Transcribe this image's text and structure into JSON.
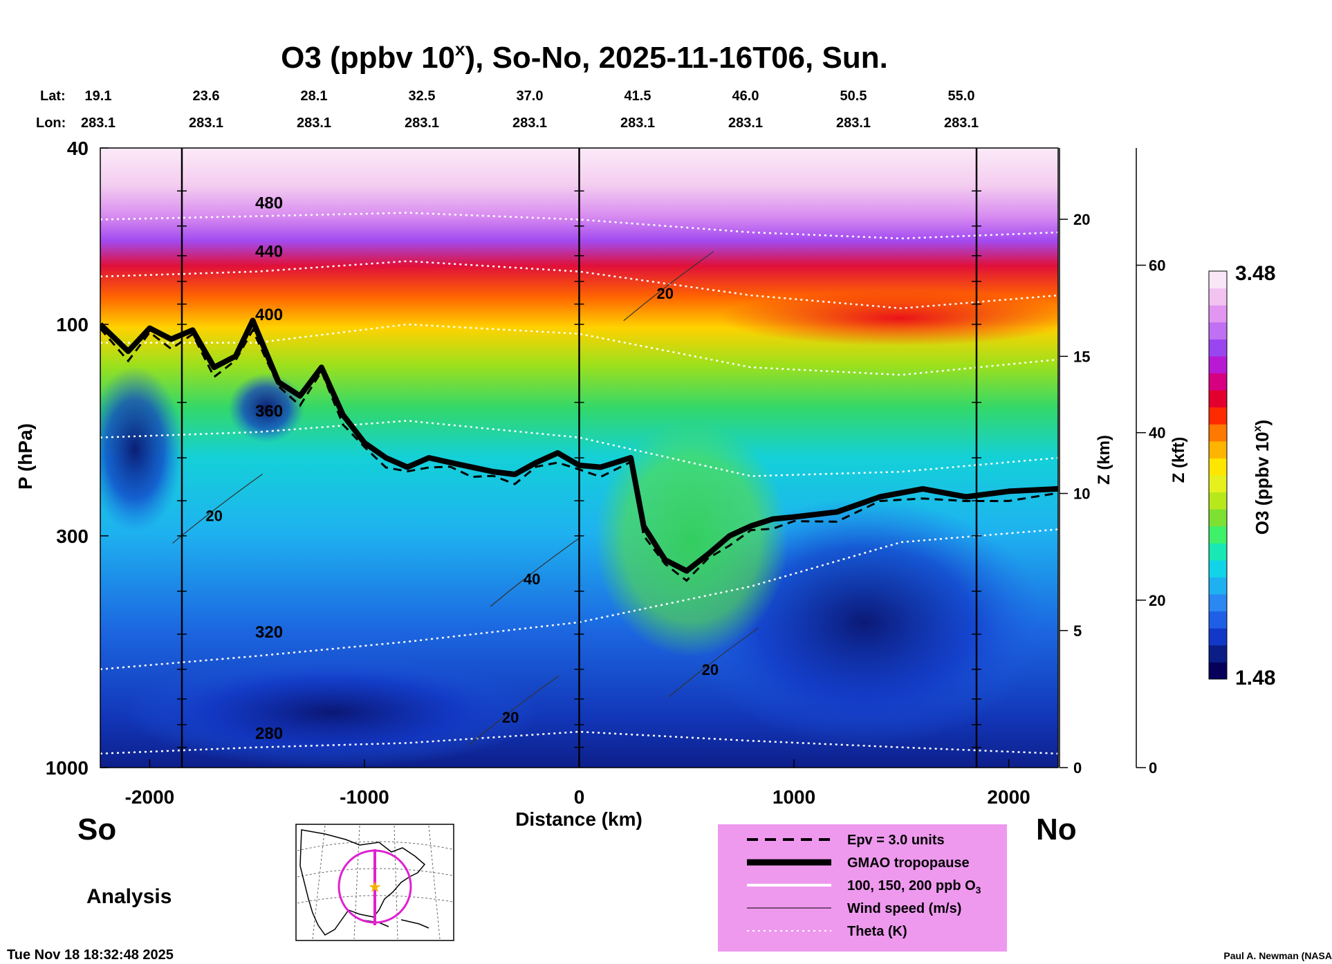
{
  "title": {
    "prefix": "O3 (ppbv 10",
    "superscript": "x",
    "suffix": "), So-No, 2025-11-16T06, Sun."
  },
  "top_axis": {
    "lat_label": "Lat:",
    "lon_label": "Lon:",
    "lat": [
      "19.1",
      "23.6",
      "28.1",
      "32.5",
      "37.0",
      "41.5",
      "46.0",
      "50.5",
      "55.0"
    ],
    "lon": [
      "283.1",
      "283.1",
      "283.1",
      "283.1",
      "283.1",
      "283.1",
      "283.1",
      "283.1",
      "283.1"
    ]
  },
  "direction": {
    "left": "So",
    "right": "No"
  },
  "analysis_label": "Analysis",
  "timestamp": "Tue Nov 18 18:32:48 2025",
  "credit": "Paul A. Newman (NASA",
  "colorbar": {
    "title_prefix": "O3 (ppbv 10",
    "title_superscript": "x",
    "title_suffix": ")",
    "max_label": "3.48",
    "min_label": "1.48",
    "colors": [
      "#07005a",
      "#0b1e86",
      "#1238c8",
      "#1f5fe6",
      "#2b87f2",
      "#1fb0f2",
      "#12d4e8",
      "#18e8b4",
      "#3ef06a",
      "#7ee032",
      "#b6e81c",
      "#e6f01e",
      "#ffe600",
      "#ffb400",
      "#ff7800",
      "#ff2a00",
      "#e4002e",
      "#d60080",
      "#b81ad4",
      "#9a46f0",
      "#c070f2",
      "#e296f2",
      "#f2c2f0",
      "#f9e6f7"
    ]
  },
  "legend": {
    "background": "#ee99ee",
    "items": [
      {
        "style": "dashed",
        "label": "Epv = 3.0 units"
      },
      {
        "style": "thick",
        "label": "GMAO tropopause"
      },
      {
        "style": "white",
        "label": "100, 150, 200 ppb O",
        "sub": "3"
      },
      {
        "style": "thin",
        "label": "Wind speed (m/s)"
      },
      {
        "style": "dotted",
        "label": "Theta (K)"
      }
    ]
  },
  "chart_data": {
    "type": "heatmap",
    "title": "O3 (ppbv 10^x), So-No, 2025-11-16T06, Sun.",
    "xlabel": "Distance (km)",
    "ylabel": "P (hPa)",
    "y2label": "Z (km)",
    "y3label": "Z (kft)",
    "xlim": [
      -2230,
      2230
    ],
    "ylim": [
      1000,
      40
    ],
    "yscale": "log",
    "x_ticks": [
      -2000,
      -1000,
      0,
      1000,
      2000
    ],
    "x_tick_labels": [
      "-2000",
      "-1000",
      "0",
      "1000",
      "2000"
    ],
    "y_ticks": [
      40,
      100,
      300,
      1000
    ],
    "y_tick_labels": [
      "40",
      "100",
      "300",
      "1000"
    ],
    "z_km_ticks": [
      0,
      5,
      10,
      15,
      20
    ],
    "z_km_labels": [
      "0",
      "5",
      "10",
      "15",
      "20"
    ],
    "z_kft_ticks": [
      0,
      20,
      40,
      60
    ],
    "z_kft_labels": [
      "0",
      "20",
      "40",
      "60"
    ],
    "reference_lines_km": [
      -1850,
      0,
      1850
    ],
    "colorbar_range": [
      1.48,
      3.48
    ],
    "theta_contours": [
      {
        "label": "280",
        "values": [
          [
            -2230,
            930
          ],
          [
            -1500,
            900
          ],
          [
            -800,
            880
          ],
          [
            0,
            830
          ],
          [
            800,
            870
          ],
          [
            1500,
            900
          ],
          [
            2230,
            930
          ]
        ]
      },
      {
        "label": "320",
        "values": [
          [
            -2230,
            600
          ],
          [
            -1500,
            560
          ],
          [
            -800,
            520
          ],
          [
            0,
            470
          ],
          [
            800,
            390
          ],
          [
            1500,
            310
          ],
          [
            2230,
            290
          ]
        ]
      },
      {
        "label": "360",
        "values": [
          [
            -2230,
            180
          ],
          [
            -1500,
            175
          ],
          [
            -800,
            165
          ],
          [
            0,
            180
          ],
          [
            800,
            220
          ],
          [
            1500,
            215
          ],
          [
            2230,
            200
          ]
        ]
      },
      {
        "label": "400",
        "values": [
          [
            -2230,
            110
          ],
          [
            -1500,
            110
          ],
          [
            -800,
            100
          ],
          [
            0,
            105
          ],
          [
            800,
            125
          ],
          [
            1500,
            130
          ],
          [
            2230,
            120
          ]
        ]
      },
      {
        "label": "440",
        "values": [
          [
            -2230,
            78
          ],
          [
            -1500,
            76
          ],
          [
            -800,
            72
          ],
          [
            0,
            76
          ],
          [
            800,
            86
          ],
          [
            1500,
            92
          ],
          [
            2230,
            86
          ]
        ]
      },
      {
        "label": "480",
        "values": [
          [
            -2230,
            58
          ],
          [
            -1500,
            57
          ],
          [
            -800,
            56
          ],
          [
            0,
            58
          ],
          [
            800,
            62
          ],
          [
            1500,
            64
          ],
          [
            2230,
            62
          ]
        ]
      }
    ],
    "tropopause": [
      [
        -2230,
        100
      ],
      [
        -2100,
        115
      ],
      [
        -2000,
        102
      ],
      [
        -1900,
        108
      ],
      [
        -1800,
        103
      ],
      [
        -1700,
        125
      ],
      [
        -1600,
        118
      ],
      [
        -1520,
        98
      ],
      [
        -1400,
        135
      ],
      [
        -1300,
        145
      ],
      [
        -1200,
        125
      ],
      [
        -1100,
        160
      ],
      [
        -1000,
        185
      ],
      [
        -900,
        200
      ],
      [
        -800,
        210
      ],
      [
        -700,
        200
      ],
      [
        -600,
        205
      ],
      [
        -500,
        210
      ],
      [
        -400,
        215
      ],
      [
        -300,
        218
      ],
      [
        -200,
        205
      ],
      [
        -100,
        195
      ],
      [
        0,
        208
      ],
      [
        100,
        210
      ],
      [
        240,
        200
      ],
      [
        300,
        285
      ],
      [
        400,
        340
      ],
      [
        500,
        360
      ],
      [
        600,
        330
      ],
      [
        700,
        300
      ],
      [
        800,
        285
      ],
      [
        900,
        275
      ],
      [
        1000,
        272
      ],
      [
        1200,
        265
      ],
      [
        1400,
        245
      ],
      [
        1600,
        235
      ],
      [
        1800,
        245
      ],
      [
        2000,
        238
      ],
      [
        2230,
        235
      ]
    ],
    "wind_speed_labels": [
      {
        "label": "20",
        "x": -1700,
        "p": 270
      },
      {
        "label": "20",
        "x": 400,
        "p": 85
      },
      {
        "label": "40",
        "x": -220,
        "p": 375
      },
      {
        "label": "20",
        "x": 610,
        "p": 600
      },
      {
        "label": "20",
        "x": -320,
        "p": 770
      }
    ]
  }
}
